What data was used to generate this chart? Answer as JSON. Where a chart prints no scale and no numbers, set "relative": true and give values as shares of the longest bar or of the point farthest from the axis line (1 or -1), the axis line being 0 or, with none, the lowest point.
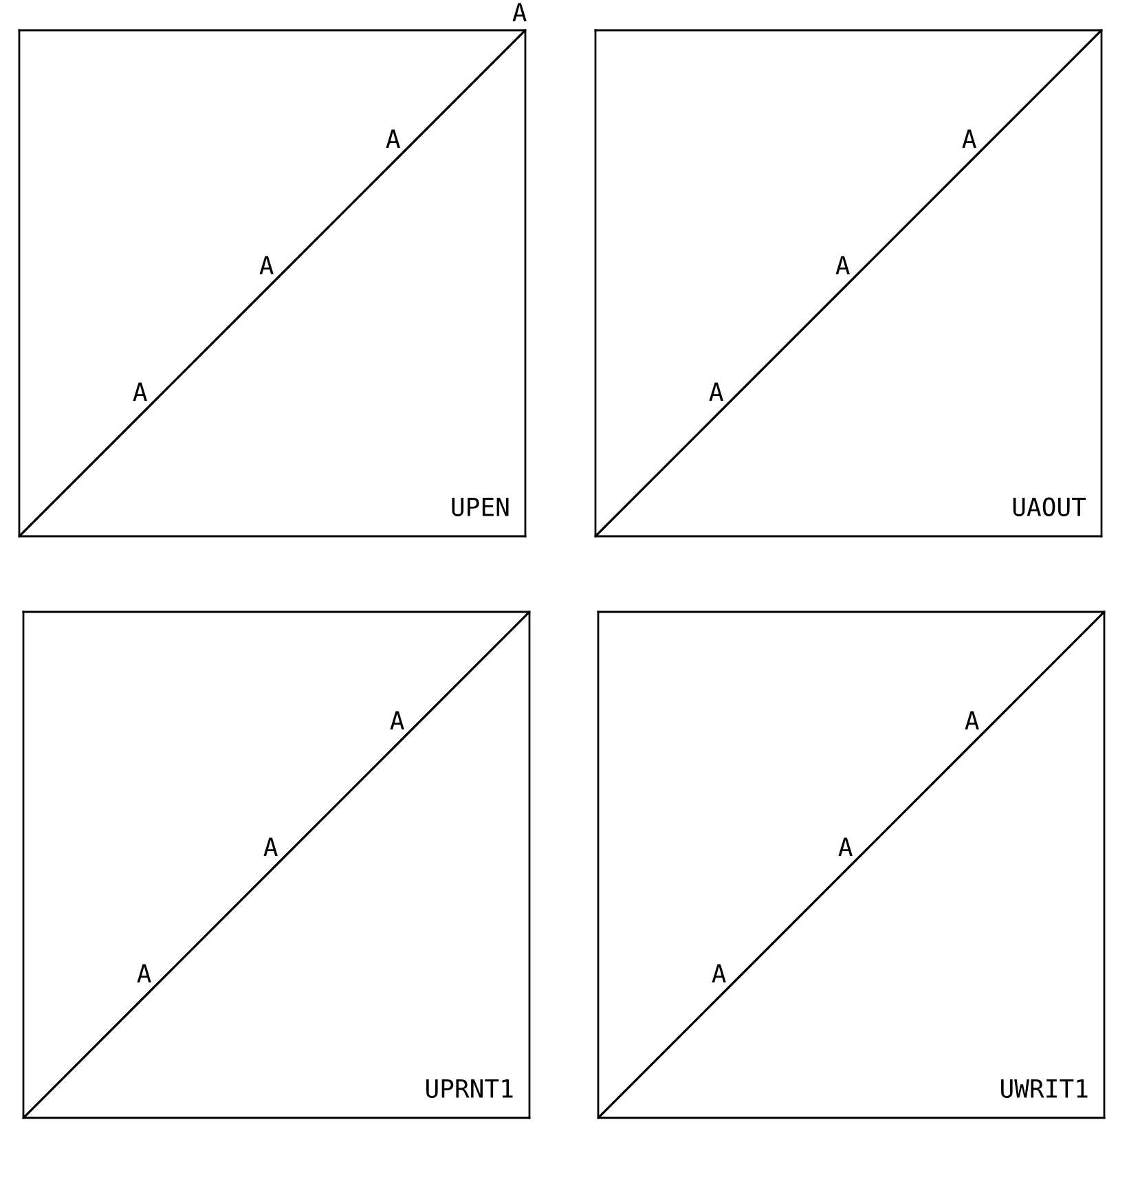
{
  "chart_data": [
    {
      "type": "line",
      "relative": true,
      "title": "UPEN",
      "categories": [
        null,
        null,
        null,
        null,
        null
      ],
      "values": [
        0,
        0.25,
        0.5,
        0.75,
        1
      ],
      "color": "#000000",
      "tick_labels": false,
      "annotations": [
        "A",
        "A",
        "A",
        "A"
      ]
    },
    {
      "type": "line",
      "relative": true,
      "title": "UAOUT",
      "categories": [
        null,
        null,
        null,
        null,
        null
      ],
      "values": [
        0,
        0.25,
        0.5,
        0.75,
        1
      ],
      "color": "#000000",
      "tick_labels": false,
      "annotations": [
        "A",
        "A",
        "A"
      ]
    },
    {
      "type": "line",
      "relative": true,
      "title": "UPRNT1",
      "categories": [
        null,
        null,
        null,
        null,
        null
      ],
      "values": [
        0,
        0.25,
        0.5,
        0.75,
        1
      ],
      "color": "#000000",
      "tick_labels": false,
      "annotations": [
        "A",
        "A",
        "A"
      ]
    },
    {
      "type": "line",
      "relative": true,
      "title": "UWRIT1",
      "categories": [
        null,
        null,
        null,
        null,
        null
      ],
      "values": [
        0,
        0.25,
        0.5,
        0.75,
        1
      ],
      "color": "#000000",
      "tick_labels": false,
      "annotations": [
        "A",
        "A",
        "A"
      ]
    }
  ]
}
